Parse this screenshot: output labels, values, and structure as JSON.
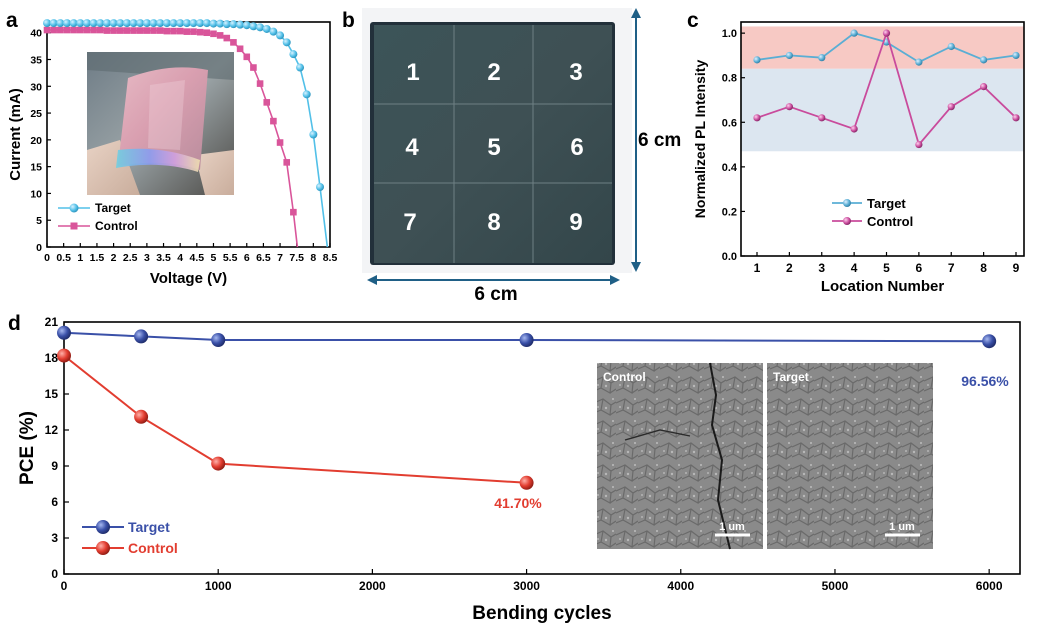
{
  "panels": {
    "a": {
      "letter": "a",
      "xlabel": "Voltage (V)",
      "ylabel": "Current (mA)",
      "xticks": [
        "0",
        "0.5",
        "1",
        "1.5",
        "2",
        "2.5",
        "3",
        "3.5",
        "4",
        "4.5",
        "5",
        "5.5",
        "6",
        "6.5",
        "7",
        "7.5",
        "8",
        "8.5"
      ],
      "yticks": [
        "0",
        "5",
        "10",
        "15",
        "20",
        "25",
        "30",
        "35",
        "40"
      ],
      "legend": [
        "Target",
        "Control"
      ]
    },
    "b": {
      "letter": "b",
      "cells": [
        "1",
        "2",
        "3",
        "4",
        "5",
        "6",
        "7",
        "8",
        "9"
      ],
      "width_label": "6 cm",
      "height_label": "6 cm"
    },
    "c": {
      "letter": "c",
      "xlabel": "Location Number",
      "ylabel": "Normalized PL Intensity",
      "xticks": [
        "1",
        "2",
        "3",
        "4",
        "5",
        "6",
        "7",
        "8",
        "9"
      ],
      "yticks": [
        "0.0",
        "0.2",
        "0.4",
        "0.6",
        "0.8",
        "1.0"
      ],
      "legend": [
        "Target",
        "Control"
      ]
    },
    "d": {
      "letter": "d",
      "xlabel": "Bending cycles",
      "ylabel": "PCE (%)",
      "xticks": [
        "0",
        "1000",
        "2000",
        "3000",
        "4000",
        "5000",
        "6000"
      ],
      "yticks": [
        "0",
        "3",
        "6",
        "9",
        "12",
        "15",
        "18",
        "21"
      ],
      "legend": [
        "Target",
        "Control"
      ],
      "annot_target": "96.56%",
      "annot_control": "41.70%",
      "sem_left_label": "Control",
      "sem_right_label": "Target",
      "scale_bar": "1 um"
    }
  },
  "colors": {
    "target_a": "#52c0e8",
    "control_a": "#d9559a",
    "target_c": "#5aaed4",
    "control_c": "#c94b9c",
    "target_d": "#3a50a8",
    "control_d": "#e23d30",
    "band_pink": "#f7c9c4",
    "band_blue": "#dce6f0"
  },
  "chart_data": [
    {
      "panel": "a",
      "type": "line",
      "xlabel": "Voltage (V)",
      "ylabel": "Current (mA)",
      "xlim": [
        0,
        8.5
      ],
      "ylim": [
        0,
        42
      ],
      "series": [
        {
          "name": "Target",
          "x": [
            0,
            0.2,
            0.4,
            0.6,
            0.8,
            1.0,
            1.2,
            1.4,
            1.6,
            1.8,
            2.0,
            2.2,
            2.4,
            2.6,
            2.8,
            3.0,
            3.2,
            3.4,
            3.6,
            3.8,
            4.0,
            4.2,
            4.4,
            4.6,
            4.8,
            5.0,
            5.2,
            5.4,
            5.6,
            5.8,
            6.0,
            6.2,
            6.4,
            6.6,
            6.8,
            7.0,
            7.2,
            7.4,
            7.6,
            7.8,
            8.0,
            8.2
          ],
          "y": [
            41.8,
            41.8,
            41.8,
            41.8,
            41.8,
            41.8,
            41.8,
            41.8,
            41.8,
            41.8,
            41.8,
            41.8,
            41.8,
            41.8,
            41.8,
            41.8,
            41.8,
            41.8,
            41.8,
            41.8,
            41.8,
            41.8,
            41.8,
            41.8,
            41.8,
            41.7,
            41.7,
            41.6,
            41.6,
            41.5,
            41.4,
            41.2,
            41.0,
            40.7,
            40.2,
            39.5,
            38.2,
            36.0,
            33.5,
            28.5,
            21.0,
            11.2
          ]
        },
        {
          "name": "Control",
          "x": [
            0,
            0.2,
            0.4,
            0.6,
            0.8,
            1.0,
            1.2,
            1.4,
            1.6,
            1.8,
            2.0,
            2.2,
            2.4,
            2.6,
            2.8,
            3.0,
            3.2,
            3.4,
            3.6,
            3.8,
            4.0,
            4.2,
            4.4,
            4.6,
            4.8,
            5.0,
            5.2,
            5.4,
            5.6,
            5.8,
            6.0,
            6.2,
            6.4,
            6.6,
            6.8,
            7.0,
            7.2,
            7.4
          ],
          "y": [
            40.5,
            40.5,
            40.5,
            40.5,
            40.5,
            40.5,
            40.5,
            40.5,
            40.5,
            40.4,
            40.4,
            40.4,
            40.4,
            40.4,
            40.4,
            40.4,
            40.4,
            40.4,
            40.3,
            40.3,
            40.3,
            40.2,
            40.2,
            40.1,
            40.0,
            39.8,
            39.5,
            39.0,
            38.2,
            37.0,
            35.5,
            33.5,
            30.5,
            27.0,
            23.5,
            19.5,
            15.8,
            6.5
          ]
        }
      ]
    },
    {
      "panel": "c",
      "type": "line",
      "xlabel": "Location Number",
      "ylabel": "Normalized PL Intensity",
      "ylim": [
        0,
        1.05
      ],
      "categories": [
        1,
        2,
        3,
        4,
        5,
        6,
        7,
        8,
        9
      ],
      "series": [
        {
          "name": "Target",
          "values": [
            0.88,
            0.9,
            0.89,
            1.0,
            0.96,
            0.87,
            0.94,
            0.88,
            0.9
          ]
        },
        {
          "name": "Control",
          "values": [
            0.62,
            0.67,
            0.62,
            0.57,
            1.0,
            0.5,
            0.67,
            0.76,
            0.62
          ]
        }
      ]
    },
    {
      "panel": "d",
      "type": "line",
      "xlabel": "Bending cycles",
      "ylabel": "PCE (%)",
      "xlim": [
        0,
        6200
      ],
      "ylim": [
        0,
        21
      ],
      "series": [
        {
          "name": "Target",
          "x": [
            0,
            500,
            1000,
            3000,
            6000
          ],
          "y": [
            20.1,
            19.8,
            19.5,
            19.5,
            19.4
          ]
        },
        {
          "name": "Control",
          "x": [
            0,
            500,
            1000,
            3000
          ],
          "y": [
            18.2,
            13.1,
            9.2,
            7.6
          ]
        }
      ]
    }
  ]
}
